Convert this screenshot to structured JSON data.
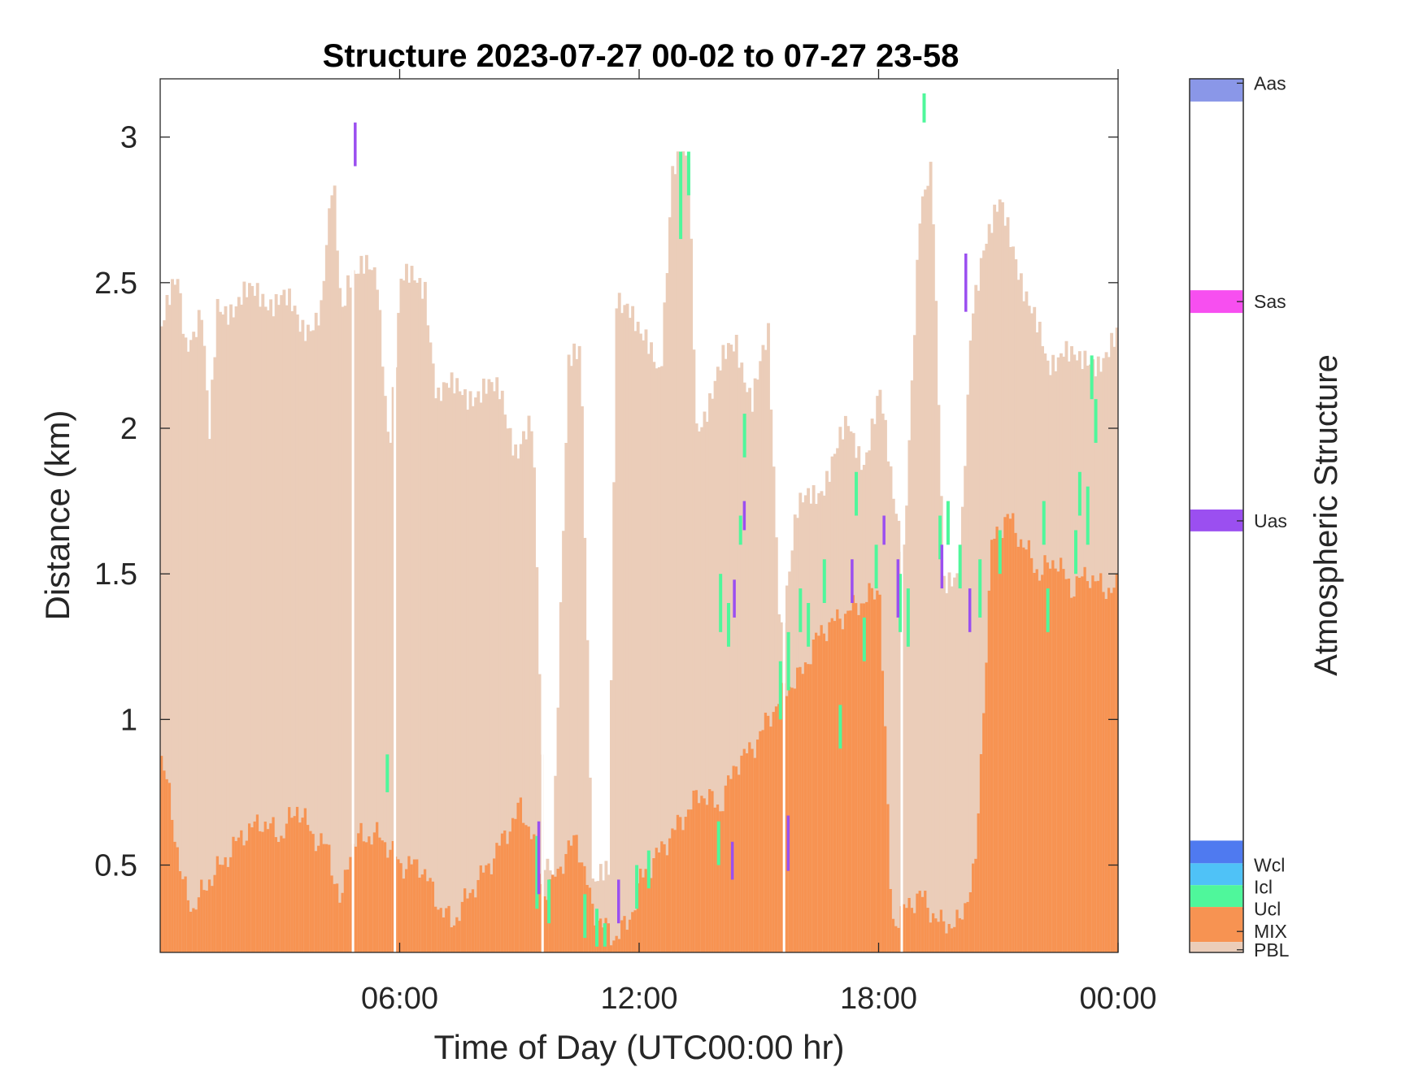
{
  "chart_data": {
    "type": "heatmap",
    "title": "Structure 2023-07-27 00-02 to 07-27 23-58",
    "xlabel": "Time of Day (UTC00:00 hr)",
    "ylabel": "Distance (km)",
    "colorbar_label": "Atmospheric Structure",
    "xlim": [
      0,
      24
    ],
    "ylim": [
      0.2,
      3.2
    ],
    "x_ticks": [
      6,
      12,
      18,
      24
    ],
    "x_tick_labels": [
      "06:00",
      "12:00",
      "18:00",
      "00:00"
    ],
    "y_ticks": [
      0.5,
      1,
      1.5,
      2,
      2.5,
      3
    ],
    "y_tick_labels": [
      "0.5",
      "1",
      "1.5",
      "2",
      "2.5",
      "3"
    ],
    "classes": [
      {
        "name": "Aas",
        "color": "#8a97e8"
      },
      {
        "name": "Sas",
        "color": "#f74ff0"
      },
      {
        "name": "Uas",
        "color": "#9b4ff0"
      },
      {
        "name": "Wcl",
        "color": "#4f7af0"
      },
      {
        "name": "Icl",
        "color": "#4fc2f7"
      },
      {
        "name": "Ucl",
        "color": "#4ff79b"
      },
      {
        "name": "MIX",
        "color": "#f79352"
      },
      {
        "name": "PBL",
        "color": "#ebcdb9"
      }
    ],
    "pbl_top_profile_km": [
      [
        0.0,
        2.35
      ],
      [
        0.4,
        2.5
      ],
      [
        0.6,
        2.3
      ],
      [
        1.0,
        2.4
      ],
      [
        1.2,
        1.95
      ],
      [
        1.4,
        2.4
      ],
      [
        2.0,
        2.45
      ],
      [
        3.0,
        2.45
      ],
      [
        3.5,
        2.35
      ],
      [
        4.0,
        2.4
      ],
      [
        4.3,
        2.85
      ],
      [
        4.5,
        2.4
      ],
      [
        4.7,
        2.55
      ],
      [
        5.0,
        2.55
      ],
      [
        5.4,
        2.5
      ],
      [
        5.7,
        1.95
      ],
      [
        6.0,
        2.5
      ],
      [
        6.6,
        2.5
      ],
      [
        6.9,
        2.1
      ],
      [
        7.5,
        2.15
      ],
      [
        8.0,
        2.1
      ],
      [
        8.5,
        2.15
      ],
      [
        8.9,
        1.9
      ],
      [
        9.3,
        2.0
      ],
      [
        9.6,
        0.55
      ],
      [
        9.8,
        0.5
      ],
      [
        10.2,
        2.2
      ],
      [
        10.5,
        2.3
      ],
      [
        10.8,
        0.45
      ],
      [
        11.2,
        0.45
      ],
      [
        11.4,
        2.45
      ],
      [
        11.7,
        2.45
      ],
      [
        12.0,
        2.3
      ],
      [
        12.5,
        2.2
      ],
      [
        12.8,
        2.9
      ],
      [
        13.2,
        2.9
      ],
      [
        13.4,
        2.0
      ],
      [
        14.0,
        2.2
      ],
      [
        14.4,
        2.3
      ],
      [
        14.8,
        2.1
      ],
      [
        15.2,
        2.3
      ],
      [
        15.5,
        1.3
      ],
      [
        15.9,
        1.7
      ],
      [
        16.5,
        1.8
      ],
      [
        17.2,
        2.0
      ],
      [
        17.6,
        1.9
      ],
      [
        18.0,
        2.1
      ],
      [
        18.3,
        1.8
      ],
      [
        18.6,
        1.6
      ],
      [
        19.0,
        2.7
      ],
      [
        19.3,
        2.9
      ],
      [
        19.6,
        1.5
      ],
      [
        20.0,
        1.45
      ],
      [
        20.3,
        2.4
      ],
      [
        20.6,
        2.65
      ],
      [
        21.0,
        2.75
      ],
      [
        21.4,
        2.6
      ],
      [
        21.8,
        2.4
      ],
      [
        22.2,
        2.2
      ],
      [
        22.6,
        2.3
      ],
      [
        23.0,
        2.2
      ],
      [
        23.5,
        2.25
      ],
      [
        24.0,
        2.3
      ]
    ],
    "mix_top_profile_km": [
      [
        0.0,
        0.85
      ],
      [
        0.2,
        0.75
      ],
      [
        0.5,
        0.45
      ],
      [
        0.8,
        0.35
      ],
      [
        1.2,
        0.45
      ],
      [
        1.5,
        0.5
      ],
      [
        2.0,
        0.6
      ],
      [
        2.5,
        0.65
      ],
      [
        3.0,
        0.6
      ],
      [
        3.4,
        0.7
      ],
      [
        3.8,
        0.6
      ],
      [
        4.2,
        0.55
      ],
      [
        4.5,
        0.35
      ],
      [
        4.7,
        0.55
      ],
      [
        5.0,
        0.6
      ],
      [
        5.5,
        0.6
      ],
      [
        6.0,
        0.5
      ],
      [
        6.5,
        0.5
      ],
      [
        7.0,
        0.35
      ],
      [
        7.3,
        0.3
      ],
      [
        7.7,
        0.4
      ],
      [
        8.2,
        0.5
      ],
      [
        8.6,
        0.6
      ],
      [
        9.0,
        0.7
      ],
      [
        9.3,
        0.6
      ],
      [
        9.6,
        0.4
      ],
      [
        10.0,
        0.5
      ],
      [
        10.4,
        0.6
      ],
      [
        10.8,
        0.35
      ],
      [
        11.3,
        0.25
      ],
      [
        11.7,
        0.3
      ],
      [
        12.0,
        0.45
      ],
      [
        12.5,
        0.55
      ],
      [
        13.0,
        0.65
      ],
      [
        13.5,
        0.75
      ],
      [
        14.0,
        0.7
      ],
      [
        14.4,
        0.85
      ],
      [
        14.8,
        0.9
      ],
      [
        15.2,
        1.0
      ],
      [
        15.6,
        1.1
      ],
      [
        16.0,
        1.15
      ],
      [
        16.5,
        1.3
      ],
      [
        17.0,
        1.35
      ],
      [
        17.5,
        1.4
      ],
      [
        18.0,
        1.45
      ],
      [
        18.3,
        0.3
      ],
      [
        19.0,
        0.4
      ],
      [
        19.5,
        0.3
      ],
      [
        20.0,
        0.3
      ],
      [
        20.4,
        0.5
      ],
      [
        20.8,
        1.6
      ],
      [
        21.2,
        1.7
      ],
      [
        21.6,
        1.6
      ],
      [
        22.0,
        1.5
      ],
      [
        22.4,
        1.55
      ],
      [
        22.8,
        1.45
      ],
      [
        23.2,
        1.5
      ],
      [
        23.6,
        1.45
      ],
      [
        24.0,
        1.45
      ]
    ],
    "ucl_segments_km": [
      [
        5.65,
        0.75,
        0.88
      ],
      [
        9.4,
        0.35,
        0.6
      ],
      [
        9.7,
        0.3,
        0.45
      ],
      [
        10.6,
        0.25,
        0.4
      ],
      [
        10.9,
        0.22,
        0.35
      ],
      [
        11.1,
        0.22,
        0.3
      ],
      [
        11.9,
        0.35,
        0.5
      ],
      [
        12.2,
        0.42,
        0.55
      ],
      [
        13.0,
        2.65,
        2.95
      ],
      [
        13.2,
        2.8,
        2.95
      ],
      [
        13.95,
        0.5,
        0.65
      ],
      [
        14.0,
        1.3,
        1.5
      ],
      [
        14.2,
        1.25,
        1.4
      ],
      [
        14.5,
        1.6,
        1.7
      ],
      [
        14.6,
        1.9,
        2.05
      ],
      [
        15.5,
        1.0,
        1.2
      ],
      [
        15.7,
        1.1,
        1.3
      ],
      [
        16.0,
        1.3,
        1.45
      ],
      [
        16.2,
        1.25,
        1.4
      ],
      [
        16.6,
        1.4,
        1.55
      ],
      [
        17.0,
        0.9,
        1.05
      ],
      [
        17.4,
        1.7,
        1.85
      ],
      [
        17.6,
        1.2,
        1.35
      ],
      [
        17.9,
        1.45,
        1.6
      ],
      [
        18.5,
        1.3,
        1.5
      ],
      [
        18.7,
        1.25,
        1.45
      ],
      [
        19.1,
        3.05,
        3.15
      ],
      [
        19.5,
        1.55,
        1.7
      ],
      [
        19.7,
        1.6,
        1.75
      ],
      [
        20.0,
        1.45,
        1.6
      ],
      [
        20.5,
        1.35,
        1.55
      ],
      [
        21.0,
        1.5,
        1.65
      ],
      [
        22.1,
        1.6,
        1.75
      ],
      [
        22.2,
        1.3,
        1.45
      ],
      [
        22.9,
        1.5,
        1.65
      ],
      [
        23.0,
        1.7,
        1.85
      ],
      [
        23.2,
        1.6,
        1.8
      ],
      [
        23.3,
        2.1,
        2.25
      ],
      [
        23.4,
        1.95,
        2.1
      ]
    ],
    "uas_segments_km": [
      [
        4.85,
        2.9,
        3.05
      ],
      [
        9.45,
        0.4,
        0.65
      ],
      [
        11.45,
        0.3,
        0.45
      ],
      [
        14.3,
        0.45,
        0.58
      ],
      [
        14.35,
        1.35,
        1.48
      ],
      [
        14.6,
        1.65,
        1.75
      ],
      [
        15.7,
        0.48,
        0.67
      ],
      [
        17.3,
        1.4,
        1.55
      ],
      [
        18.1,
        1.6,
        1.7
      ],
      [
        18.45,
        1.35,
        1.55
      ],
      [
        19.55,
        1.45,
        1.6
      ],
      [
        20.15,
        2.4,
        2.6
      ],
      [
        20.25,
        1.3,
        1.45
      ]
    ],
    "grid": false,
    "legend": "colorbar-right"
  }
}
